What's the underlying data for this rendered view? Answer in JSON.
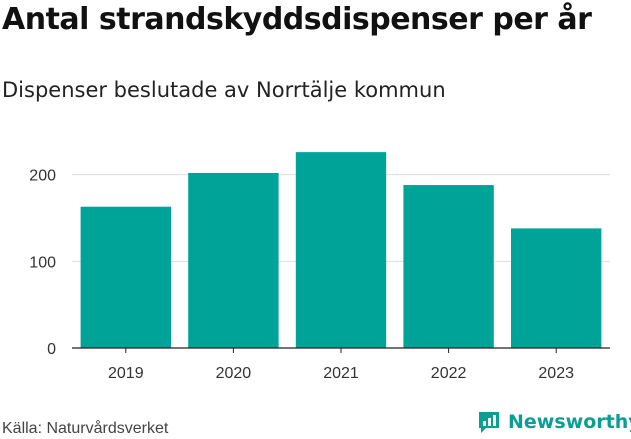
{
  "header": {
    "title": "Antal strandskyddsdispenser per år",
    "subtitle": "Dispenser beslutade av Norrtälje kommun"
  },
  "footer": {
    "source": "Källa: Naturvårdsverket",
    "brand": "Newsworthy"
  },
  "colors": {
    "bar": "#00a398",
    "grid": "#dddddd",
    "brand": "#0d9e93"
  },
  "chart_data": {
    "type": "bar",
    "title": "Antal strandskyddsdispenser per år",
    "subtitle": "Dispenser beslutade av Norrtälje kommun",
    "categories": [
      "2019",
      "2020",
      "2021",
      "2022",
      "2023"
    ],
    "values": [
      163,
      202,
      226,
      188,
      138
    ],
    "xlabel": "",
    "ylabel": "",
    "ylim": [
      0,
      240
    ],
    "yticks": [
      0,
      100,
      200
    ],
    "grid": true,
    "legend": "none"
  }
}
